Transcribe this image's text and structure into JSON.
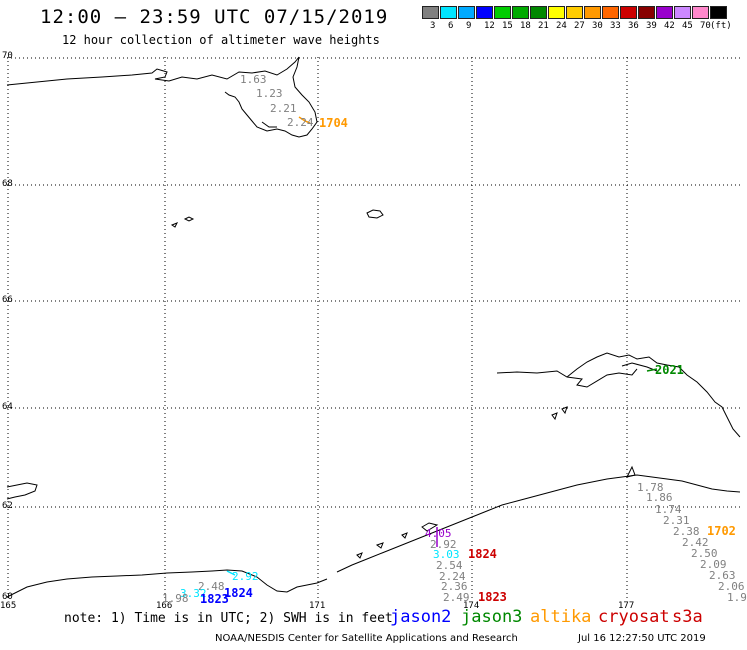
{
  "header": {
    "title": "12:00 – 23:59 UTC 07/15/2019",
    "subtitle": "12 hour collection of altimeter wave heights"
  },
  "legend": {
    "colors": [
      "#808080",
      "#00e5ff",
      "#00aaff",
      "#0000ff",
      "#00cc00",
      "#00aa00",
      "#008800",
      "#ffff00",
      "#ffcc00",
      "#ff9900",
      "#ff6600",
      "#cc0000",
      "#880000",
      "#9900cc",
      "#cc88ff",
      "#ff88cc",
      "#000000"
    ],
    "labels": [
      "3",
      "6",
      "9",
      "12",
      "15",
      "18",
      "21",
      "24",
      "27",
      "30",
      "33",
      "36",
      "39",
      "42",
      "45",
      "70",
      "(ft)"
    ]
  },
  "axes": {
    "lat_labels": [
      "70",
      "68",
      "66",
      "64",
      "62",
      "60"
    ],
    "lon_labels": [
      "165",
      "166",
      "171",
      "174",
      "177"
    ]
  },
  "observations": [
    {
      "text": "1.63",
      "color": "#808080"
    },
    {
      "text": "1.23",
      "color": "#808080"
    },
    {
      "text": "2.21",
      "color": "#808080"
    },
    {
      "text": "2.24",
      "color": "#808080"
    },
    {
      "text": "1704",
      "color": "#ff9900",
      "time": true
    },
    {
      "text": "2021",
      "color": "#008800",
      "time": true
    },
    {
      "text": "1.78",
      "color": "#808080"
    },
    {
      "text": "1.86",
      "color": "#808080"
    },
    {
      "text": "1.74",
      "color": "#808080"
    },
    {
      "text": "2.31",
      "color": "#808080"
    },
    {
      "text": "2.38",
      "color": "#808080"
    },
    {
      "text": "1702",
      "color": "#ff9900",
      "time": true
    },
    {
      "text": "2.42",
      "color": "#808080"
    },
    {
      "text": "2.50",
      "color": "#808080"
    },
    {
      "text": "2.09",
      "color": "#808080"
    },
    {
      "text": "2.63",
      "color": "#808080"
    },
    {
      "text": "2.06",
      "color": "#808080"
    },
    {
      "text": "1.9",
      "color": "#808080"
    },
    {
      "text": "4.05",
      "color": "#9900cc"
    },
    {
      "text": "2.92",
      "color": "#808080"
    },
    {
      "text": "3.03",
      "color": "#00e5ff"
    },
    {
      "text": "1824",
      "color": "#cc0000",
      "time": true
    },
    {
      "text": "2.54",
      "color": "#808080"
    },
    {
      "text": "2.24",
      "color": "#808080"
    },
    {
      "text": "2.36",
      "color": "#808080"
    },
    {
      "text": "2.49",
      "color": "#808080"
    },
    {
      "text": "1823",
      "color": "#cc0000",
      "time": true
    },
    {
      "text": "2.92",
      "color": "#00e5ff"
    },
    {
      "text": "2.48",
      "color": "#808080"
    },
    {
      "text": "3.32",
      "color": "#00e5ff"
    },
    {
      "text": "1824",
      "color": "#0000ff",
      "time": true
    },
    {
      "text": "1.98",
      "color": "#808080"
    },
    {
      "text": "1823",
      "color": "#0000ff",
      "time": true
    }
  ],
  "footer": {
    "note": "note: 1) Time is in UTC; 2) SWH is in feet",
    "satellites": [
      {
        "name": "jason2",
        "color": "#0000ff"
      },
      {
        "name": "jason3",
        "color": "#008800"
      },
      {
        "name": "altika",
        "color": "#ff9900"
      },
      {
        "name": "cryosat",
        "color": "#cc0000"
      },
      {
        "name": "s3a",
        "color": "#cc0000"
      }
    ],
    "credit": "NOAA/NESDIS Center for Satellite Applications and Research",
    "timestamp": "Jul 16 12:27:50 UTC 2019"
  }
}
